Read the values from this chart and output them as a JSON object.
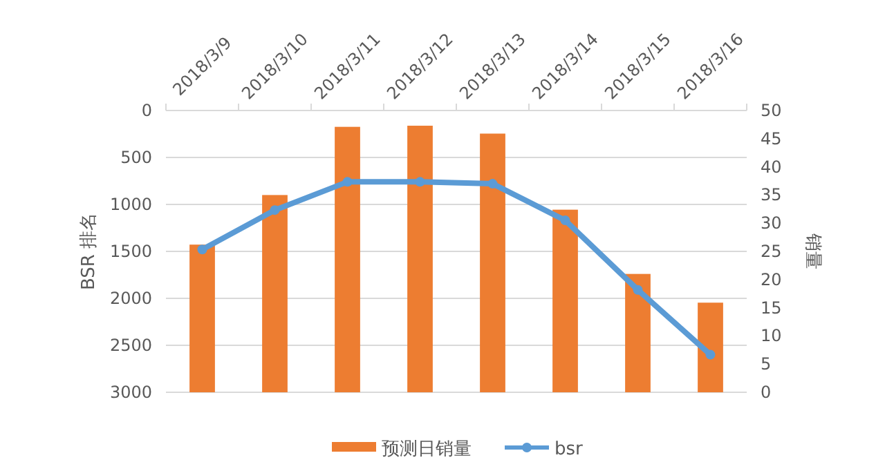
{
  "chart_data": {
    "type": "bar",
    "categories": [
      "2018/3/9",
      "2018/3/10",
      "2018/3/11",
      "2018/3/12",
      "2018/3/13",
      "2018/3/14",
      "2018/3/15",
      "2018/3/16"
    ],
    "series": [
      {
        "name": "预测日销量",
        "axis": "y2",
        "color": "#ed7d31",
        "values": [
          26.2,
          35,
          47.1,
          47.3,
          45.9,
          32.4,
          21,
          15.9
        ]
      },
      {
        "name": "bsr",
        "type": "line",
        "axis": "y",
        "color": "#5b9bd5",
        "values": [
          1480,
          1060,
          760,
          760,
          780,
          1170,
          1910,
          2600
        ]
      }
    ],
    "ylabel": "BSR 排名",
    "y2label": "销量",
    "ylim": [
      3000,
      0
    ],
    "yticks": [
      0,
      500,
      1000,
      1500,
      2000,
      2500,
      3000
    ],
    "y2lim": [
      0,
      50
    ],
    "y2ticks": [
      0,
      5,
      10,
      15,
      20,
      25,
      30,
      35,
      40,
      45,
      50
    ],
    "grid": "y",
    "legend": "bottom",
    "marker": "circle"
  }
}
